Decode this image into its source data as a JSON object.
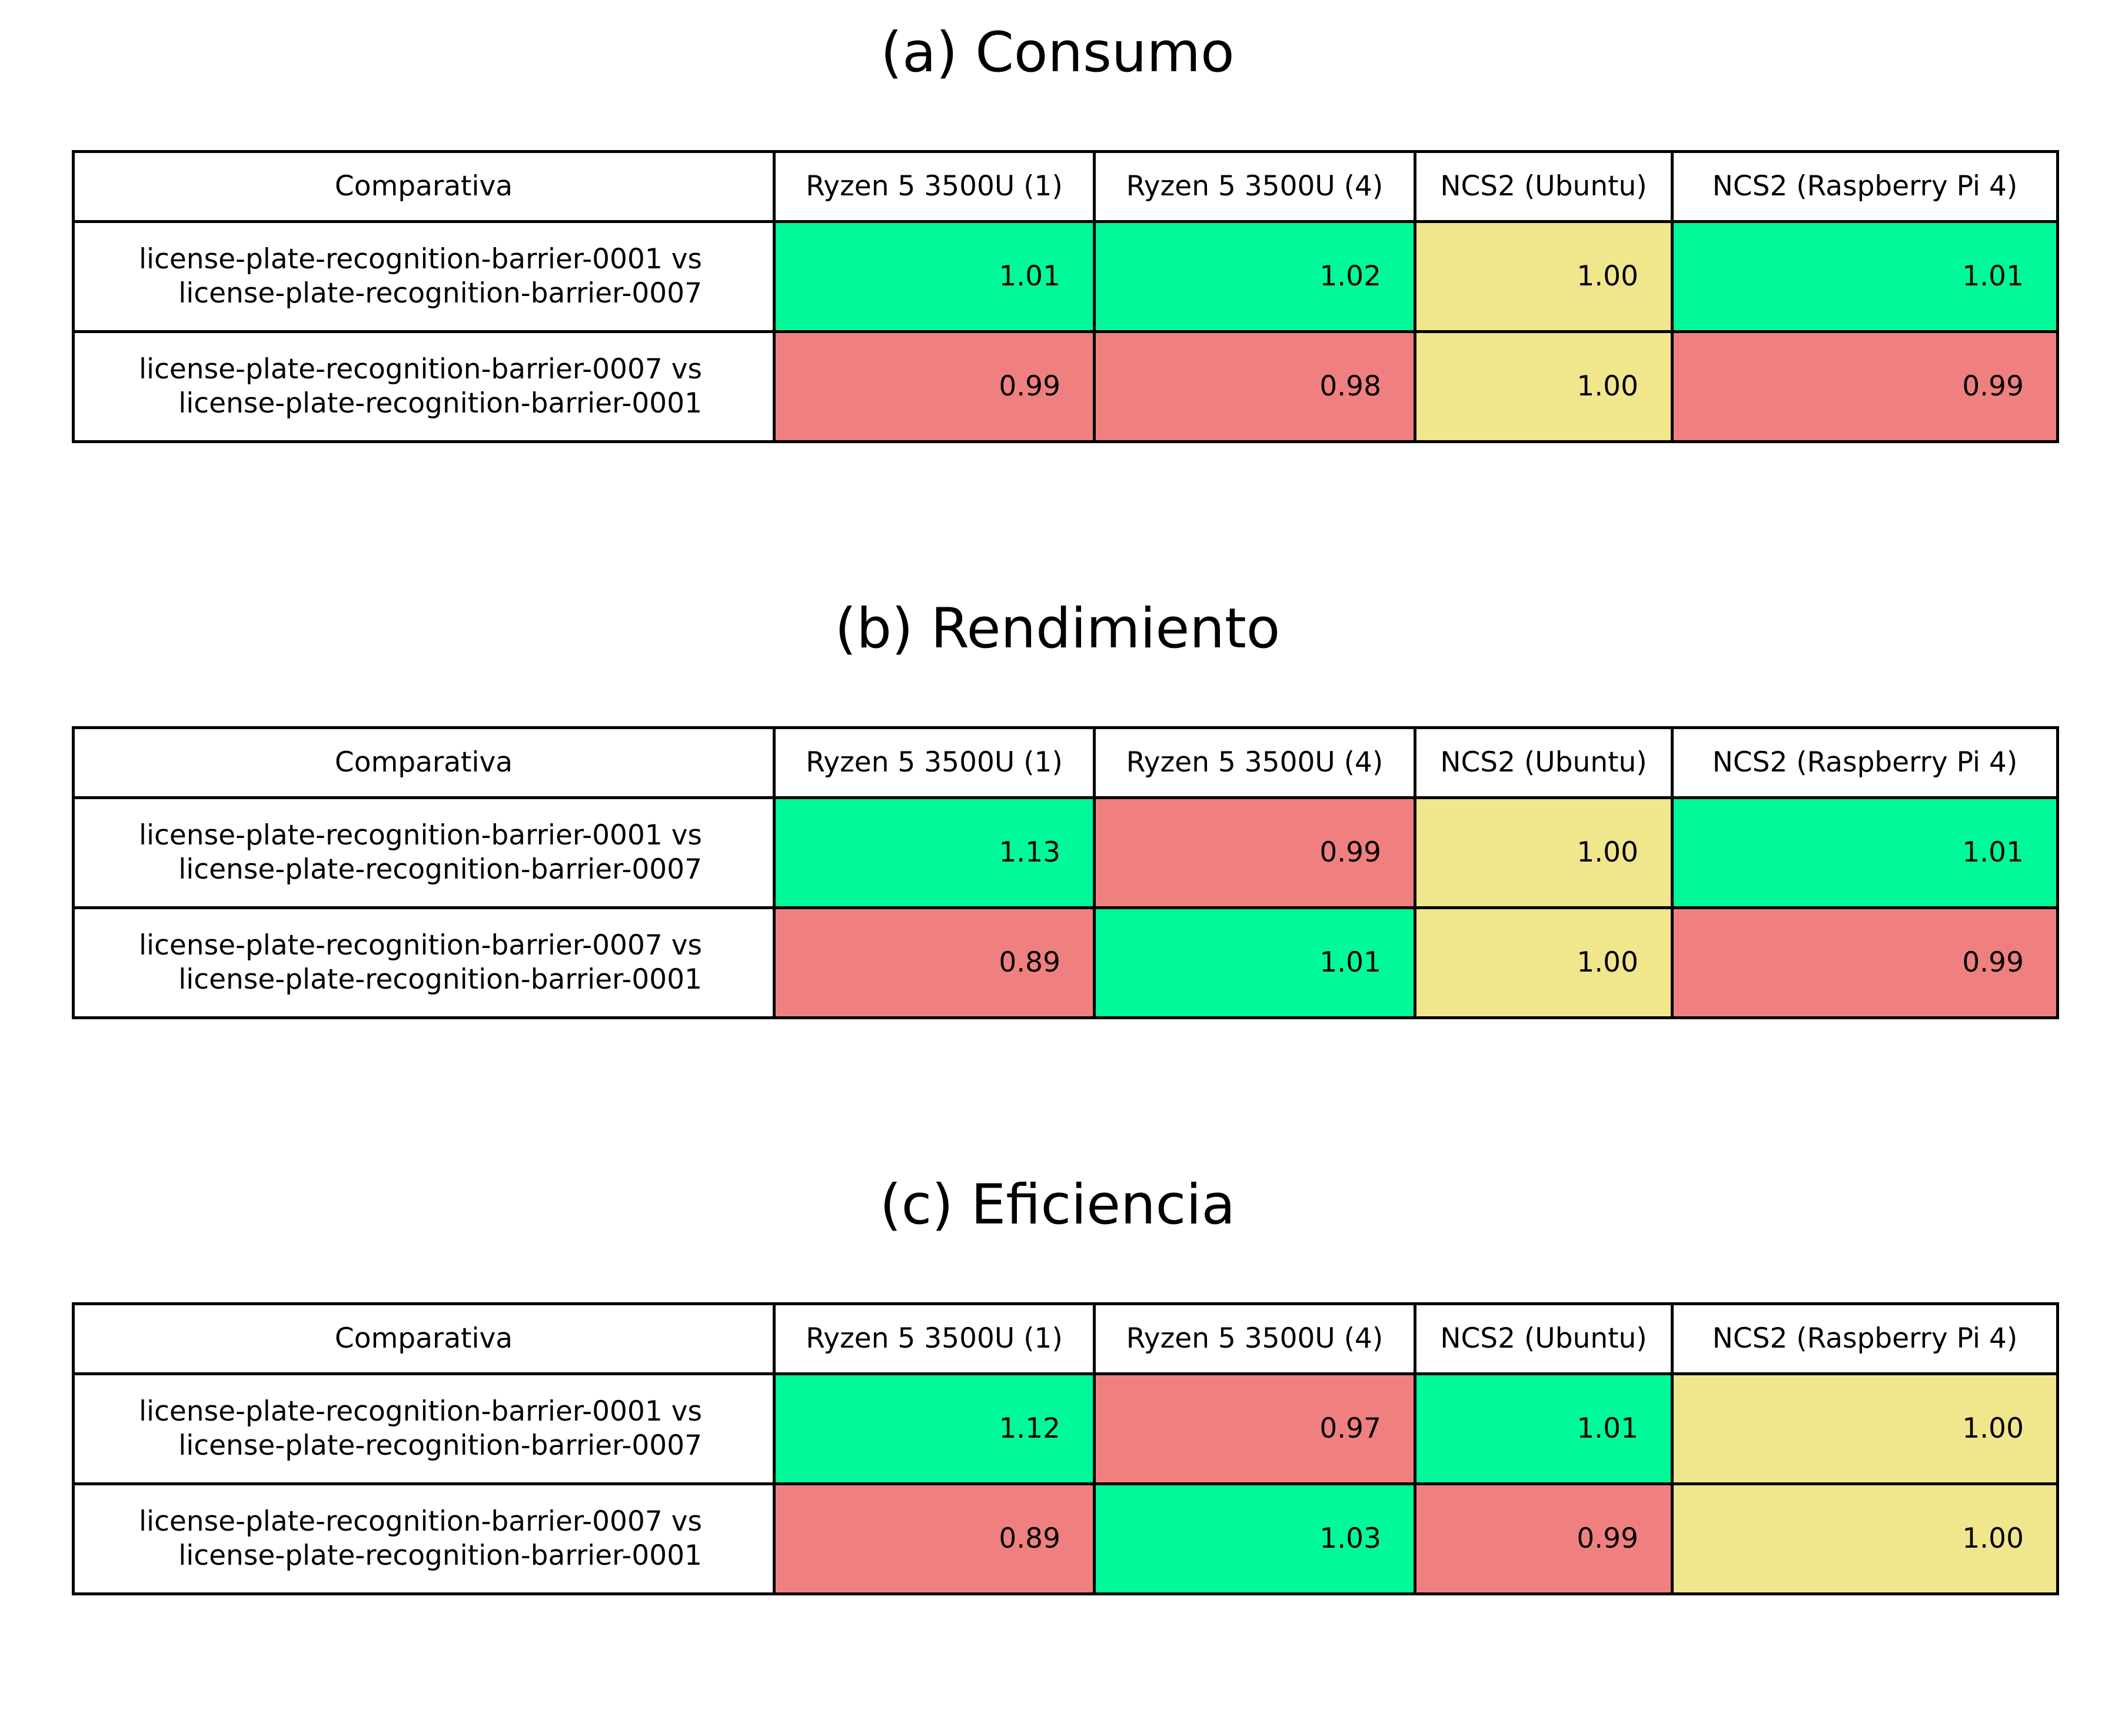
{
  "colors": {
    "better": "#00fa9a",
    "worse": "#f08080",
    "equal": "#f0e68c"
  },
  "chart_data": [
    {
      "type": "table",
      "title": "(a) Consumo",
      "columns": [
        "Comparativa",
        "Ryzen 5 3500U (1)",
        "Ryzen 5 3500U (4)",
        "NCS2 (Ubuntu)",
        "NCS2 (Raspberry Pi 4)"
      ],
      "rows": [
        {
          "label": [
            "license-plate-recognition-barrier-0001 vs",
            "license-plate-recognition-barrier-0007"
          ],
          "values": [
            "1.01",
            "1.02",
            "1.00",
            "1.01"
          ],
          "status": [
            "better",
            "better",
            "equal",
            "better"
          ]
        },
        {
          "label": [
            "license-plate-recognition-barrier-0007 vs",
            "license-plate-recognition-barrier-0001"
          ],
          "values": [
            "0.99",
            "0.98",
            "1.00",
            "0.99"
          ],
          "status": [
            "worse",
            "worse",
            "equal",
            "worse"
          ]
        }
      ]
    },
    {
      "type": "table",
      "title": "(b) Rendimiento",
      "columns": [
        "Comparativa",
        "Ryzen 5 3500U (1)",
        "Ryzen 5 3500U (4)",
        "NCS2 (Ubuntu)",
        "NCS2 (Raspberry Pi 4)"
      ],
      "rows": [
        {
          "label": [
            "license-plate-recognition-barrier-0001 vs",
            "license-plate-recognition-barrier-0007"
          ],
          "values": [
            "1.13",
            "0.99",
            "1.00",
            "1.01"
          ],
          "status": [
            "better",
            "worse",
            "equal",
            "better"
          ]
        },
        {
          "label": [
            "license-plate-recognition-barrier-0007 vs",
            "license-plate-recognition-barrier-0001"
          ],
          "values": [
            "0.89",
            "1.01",
            "1.00",
            "0.99"
          ],
          "status": [
            "worse",
            "better",
            "equal",
            "worse"
          ]
        }
      ]
    },
    {
      "type": "table",
      "title": "(c) Eficiencia",
      "columns": [
        "Comparativa",
        "Ryzen 5 3500U (1)",
        "Ryzen 5 3500U (4)",
        "NCS2 (Ubuntu)",
        "NCS2 (Raspberry Pi 4)"
      ],
      "rows": [
        {
          "label": [
            "license-plate-recognition-barrier-0001 vs",
            "license-plate-recognition-barrier-0007"
          ],
          "values": [
            "1.12",
            "0.97",
            "1.01",
            "1.00"
          ],
          "status": [
            "better",
            "worse",
            "better",
            "equal"
          ]
        },
        {
          "label": [
            "license-plate-recognition-barrier-0007 vs",
            "license-plate-recognition-barrier-0001"
          ],
          "values": [
            "0.89",
            "1.03",
            "0.99",
            "1.00"
          ],
          "status": [
            "worse",
            "better",
            "worse",
            "equal"
          ]
        }
      ]
    }
  ]
}
